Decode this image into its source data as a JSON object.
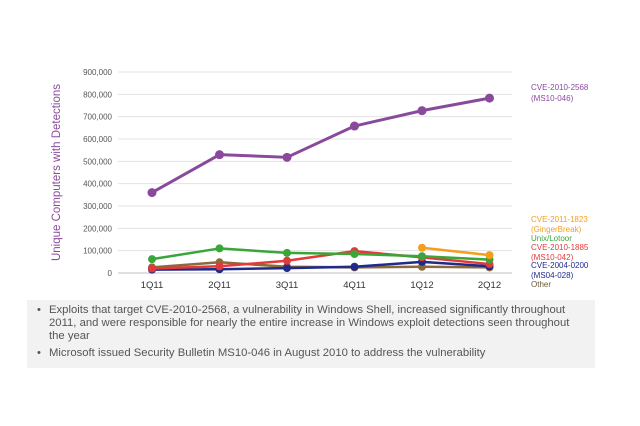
{
  "chart_data": {
    "type": "line",
    "ylabel": "Unique Computers with Detections",
    "xlabel": "",
    "categories": [
      "1Q11",
      "2Q11",
      "3Q11",
      "4Q11",
      "1Q12",
      "2Q12"
    ],
    "ylim": [
      0,
      900000
    ],
    "yticks": [
      0,
      100000,
      200000,
      300000,
      400000,
      500000,
      600000,
      700000,
      800000,
      900000
    ],
    "ytick_labels": [
      "0",
      "100,000",
      "200,000",
      "300,000",
      "400,000",
      "500,000",
      "600,000",
      "700,000",
      "800,000",
      "900,000"
    ],
    "grid": true,
    "legend": "right",
    "series": [
      {
        "name": "CVE-2010-2568 (MS10-046)",
        "label_lines": [
          "CVE-2010-2568",
          "(MS10-046)"
        ],
        "color": "#8a4a9c",
        "values": [
          360000,
          530000,
          518000,
          658000,
          727000,
          783000
        ]
      },
      {
        "name": "CVE-2011-1823 (GingerBreak)",
        "label_lines": [
          "CVE-2011-1823",
          "(GingerBreak)"
        ],
        "color": "#f59d1d",
        "values": [
          null,
          null,
          null,
          null,
          113000,
          80000
        ]
      },
      {
        "name": "Unix/Lotoor",
        "label_lines": [
          "Unix/Lotoor"
        ],
        "color": "#3aa63a",
        "values": [
          62000,
          110000,
          90000,
          85000,
          75000,
          60000
        ]
      },
      {
        "name": "CVE-2010-1885 (MS10-042)",
        "label_lines": [
          "CVE-2010-1885",
          "(MS10-042)"
        ],
        "color": "#e23a3a",
        "values": [
          20000,
          30000,
          55000,
          98000,
          70000,
          40000
        ]
      },
      {
        "name": "CVE-2004-0200 (MS04-028)",
        "label_lines": [
          "CVE-2004-0200",
          "(MS04-028)"
        ],
        "color": "#1f2a8c",
        "values": [
          15000,
          17000,
          22000,
          28000,
          50000,
          30000
        ]
      },
      {
        "name": "Other",
        "label_lines": [
          "Other"
        ],
        "color": "#8a6a3a",
        "values": [
          25000,
          48000,
          28000,
          25000,
          28000,
          25000
        ]
      }
    ]
  },
  "notes": [
    "Exploits that target CVE-2010-2568,  a vulnerability in Windows Shell, increased significantly throughout 2011, and were responsible for nearly the entire increase in Windows exploit detections seen throughout the year",
    "Microsoft issued Security Bulletin MS10-046  in August 2010 to address the vulnerability"
  ]
}
